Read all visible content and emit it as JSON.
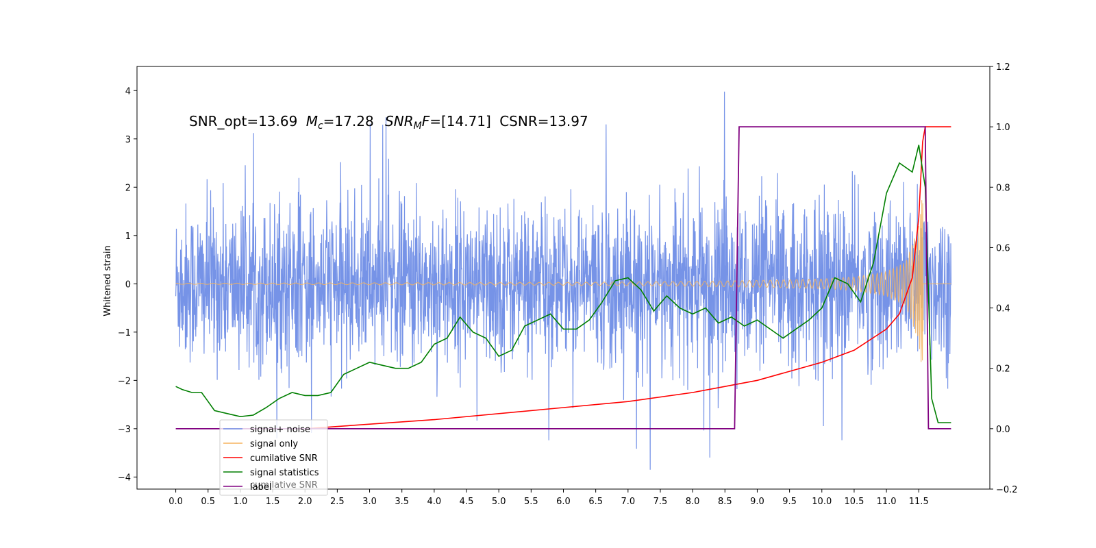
{
  "chart_data": {
    "type": "line",
    "title": "",
    "annotation": {
      "snr_opt": "SNR_opt=13.69",
      "mc_value": "=17.28",
      "snr_mf_value": "=[14.71]",
      "csnr": "CSNR=13.97"
    },
    "xlabel": "",
    "ylabel": "Whitened strain",
    "y2label": "",
    "xlim": [
      -0.6,
      12.6
    ],
    "ylim": [
      -4.25,
      4.5
    ],
    "y2lim": [
      -0.2,
      1.2
    ],
    "xticks": [
      "0.0",
      "0.5",
      "1.0",
      "1.5",
      "2.0",
      "2.5",
      "3.0",
      "3.5",
      "4.0",
      "4.5",
      "5.0",
      "5.5",
      "6.0",
      "6.5",
      "7.0",
      "7.5",
      "8.0",
      "8.5",
      "9.0",
      "9.5",
      "10.0",
      "10.5",
      "11.0",
      "11.5"
    ],
    "yticks": [
      "4",
      "3",
      "2",
      "1",
      "0",
      "−1",
      "−2",
      "−3",
      "−4"
    ],
    "y2ticks": [
      "1.2",
      "1.0",
      "0.8",
      "0.6",
      "0.4",
      "0.2",
      "0.0",
      "−0.2"
    ],
    "legend_position": "lower-left",
    "colors": {
      "signal_noise": "#6f8de6",
      "signal_only": "#f5b35e",
      "cumulative_snr": "#ff0000",
      "signal_statistics": "#007f00",
      "label": "#800080"
    },
    "series": [
      {
        "name": "signal+ noise",
        "axis": "left",
        "style": "dense noise, std ~0.85, spikes to ~4.1 and ~-3.85",
        "envelope": {
          "x": [
            0.0,
            12.0
          ],
          "typical_max": 2.3,
          "typical_min": -2.2
        }
      },
      {
        "name": "signal only",
        "axis": "left",
        "style": "chirp",
        "x_start": 0.0,
        "x_merger": 11.57,
        "x_end": 12.0,
        "envelope_x": [
          0.0,
          6.0,
          8.0,
          9.0,
          10.0,
          10.5,
          11.0,
          11.3,
          11.5,
          11.57
        ],
        "envelope_amp": [
          0.01,
          0.03,
          0.05,
          0.07,
          0.1,
          0.14,
          0.25,
          0.45,
          1.2,
          2.0
        ]
      },
      {
        "name": "cumilative SNR",
        "axis": "right",
        "x": [
          2.0,
          4.0,
          6.0,
          7.0,
          8.0,
          8.5,
          9.0,
          9.5,
          10.0,
          10.5,
          11.0,
          11.2,
          11.4,
          11.5,
          11.56,
          11.6,
          12.0
        ],
        "y": [
          0.0,
          0.03,
          0.07,
          0.09,
          0.12,
          0.14,
          0.16,
          0.19,
          0.22,
          0.26,
          0.33,
          0.38,
          0.5,
          0.7,
          0.95,
          1.0,
          1.0
        ]
      },
      {
        "name": "signal statistics",
        "axis": "right",
        "x": [
          0.0,
          0.1,
          0.25,
          0.4,
          0.5,
          0.6,
          0.8,
          1.0,
          1.2,
          1.4,
          1.6,
          1.8,
          2.0,
          2.2,
          2.4,
          2.6,
          2.8,
          3.0,
          3.2,
          3.4,
          3.6,
          3.8,
          4.0,
          4.2,
          4.4,
          4.6,
          4.8,
          5.0,
          5.2,
          5.4,
          5.6,
          5.8,
          6.0,
          6.2,
          6.4,
          6.6,
          6.8,
          7.0,
          7.2,
          7.4,
          7.6,
          7.8,
          8.0,
          8.2,
          8.4,
          8.6,
          8.8,
          9.0,
          9.2,
          9.4,
          9.6,
          9.8,
          10.0,
          10.2,
          10.4,
          10.6,
          10.8,
          11.0,
          11.2,
          11.4,
          11.5,
          11.6,
          11.7,
          11.8,
          12.0
        ],
        "y": [
          0.14,
          0.13,
          0.12,
          0.12,
          0.09,
          0.06,
          0.05,
          0.04,
          0.045,
          0.07,
          0.1,
          0.12,
          0.11,
          0.11,
          0.12,
          0.18,
          0.2,
          0.22,
          0.21,
          0.2,
          0.2,
          0.22,
          0.28,
          0.3,
          0.37,
          0.32,
          0.3,
          0.24,
          0.26,
          0.34,
          0.36,
          0.38,
          0.33,
          0.33,
          0.36,
          0.42,
          0.49,
          0.5,
          0.46,
          0.39,
          0.44,
          0.4,
          0.38,
          0.4,
          0.35,
          0.37,
          0.34,
          0.36,
          0.33,
          0.3,
          0.33,
          0.36,
          0.4,
          0.5,
          0.48,
          0.42,
          0.55,
          0.78,
          0.88,
          0.85,
          0.94,
          0.8,
          0.1,
          0.02,
          0.02
        ]
      },
      {
        "name": "label",
        "axis": "right",
        "x": [
          0.0,
          8.65,
          8.72,
          11.6,
          11.65,
          12.0
        ],
        "y": [
          0.0,
          0.0,
          1.0,
          1.0,
          0.0,
          0.0
        ]
      }
    ],
    "legend_items": [
      {
        "label": "signal+ noise",
        "color": "#6f8de6"
      },
      {
        "label": "signal only",
        "color": "#f5b35e"
      },
      {
        "label": "cumilative SNR",
        "color": "#ff0000"
      },
      {
        "label": "signal statistics",
        "color": "#007f00"
      },
      {
        "label": "label",
        "color": "#800080"
      }
    ],
    "legend_ghost_text": "cumilative SNR"
  }
}
